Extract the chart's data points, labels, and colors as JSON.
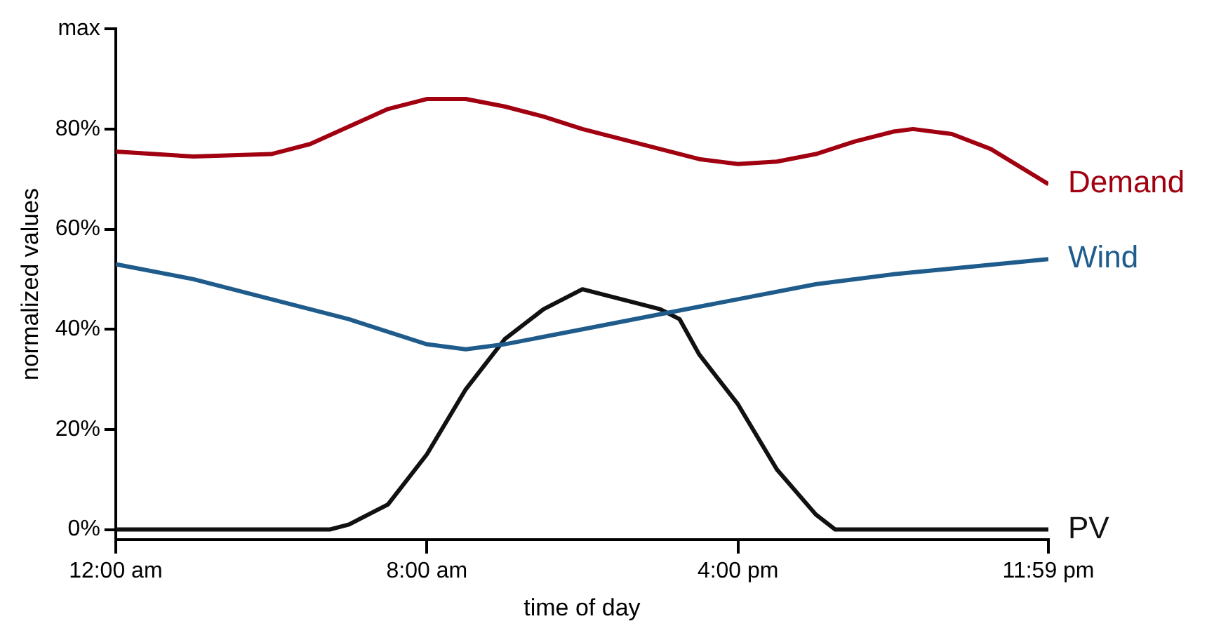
{
  "chart_data": {
    "type": "line",
    "xlabel": "time of day",
    "ylabel": "normalized values",
    "xlim": [
      0,
      23.98
    ],
    "xticks": [
      {
        "value": 0,
        "label": "12:00 am"
      },
      {
        "value": 8,
        "label": "8:00 am"
      },
      {
        "value": 16,
        "label": "4:00 pm"
      },
      {
        "value": 23.98,
        "label": "11:59 pm"
      }
    ],
    "ylim": [
      -2,
      100
    ],
    "yticks": [
      {
        "value": 0,
        "label": "0%"
      },
      {
        "value": 20,
        "label": "20%"
      },
      {
        "value": 40,
        "label": "40%"
      },
      {
        "value": 60,
        "label": "60%"
      },
      {
        "value": 80,
        "label": "80%"
      },
      {
        "value": 100,
        "label": "max"
      }
    ],
    "grid": false,
    "legend": false,
    "marker": "none",
    "line_style": "solid",
    "series": [
      {
        "name": "Demand",
        "color": "#a00010",
        "x": [
          0,
          2,
          4,
          5,
          6,
          7,
          8,
          9,
          10,
          11,
          12,
          13,
          14,
          15,
          16,
          17,
          18,
          19,
          20,
          20.5,
          21.5,
          22.5,
          23.98
        ],
        "values": [
          75.5,
          74.5,
          75,
          77,
          80.5,
          84,
          86,
          86,
          84.5,
          82.5,
          80,
          78,
          76,
          74,
          73,
          73.5,
          75,
          77.5,
          79.5,
          80,
          79,
          76,
          69
        ]
      },
      {
        "name": "Wind",
        "color": "#1f5c8c",
        "x": [
          0,
          2,
          4,
          6,
          8,
          9,
          10,
          12,
          14,
          16,
          18,
          20,
          22,
          23.98
        ],
        "values": [
          53,
          50,
          46,
          42,
          37,
          36,
          37,
          40,
          43,
          46,
          49,
          51,
          52.5,
          54
        ]
      },
      {
        "name": "PV",
        "color": "#111111",
        "x": [
          0,
          5.5,
          6,
          7,
          8,
          9,
          10,
          11,
          12,
          13,
          14,
          14.5,
          15,
          16,
          17,
          18,
          18.5,
          23.98
        ],
        "values": [
          0,
          0,
          1,
          5,
          15,
          28,
          38,
          44,
          48,
          46,
          44,
          42,
          35,
          25,
          12,
          3,
          0,
          0
        ]
      }
    ]
  }
}
